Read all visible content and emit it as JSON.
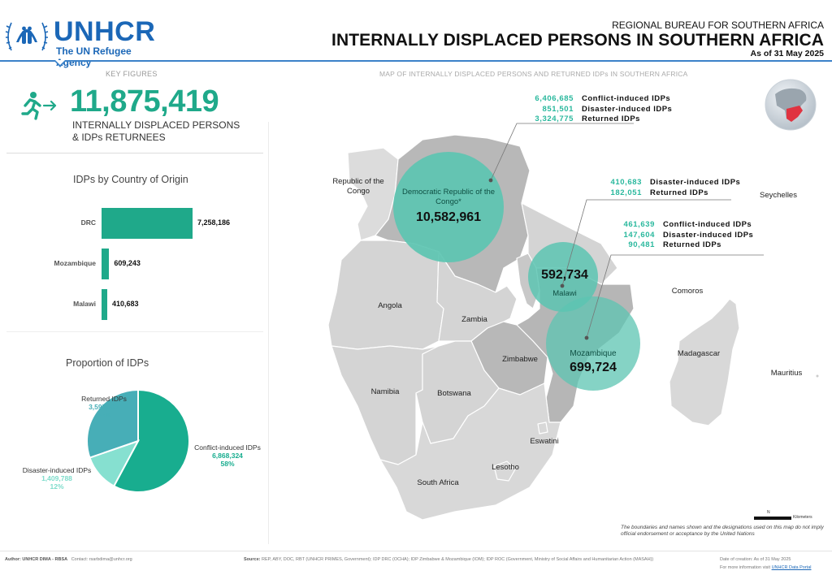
{
  "header": {
    "org_name": "UNHCR",
    "org_tagline": "The UN Refugee Agency",
    "bureau": "REGIONAL BUREAU FOR SOUTHERN AFRICA",
    "title": "INTERNALLY DISPLACED PERSONS IN SOUTHERN AFRICA",
    "as_of": "As of 31 May 2025"
  },
  "key_figures": {
    "section_label": "KEY FIGURES",
    "icon": "running-person-arrow-icon",
    "total": "11,875,419",
    "desc_line1": "INTERNALLY DISPLACED PERSONS",
    "desc_line2": "& IDPs RETURNEES"
  },
  "colors": {
    "accent": "#1fa98a",
    "brand_blue": "#1b67b7",
    "circle": "#5cc4b1",
    "conflict": "#18ad8f",
    "disaster": "#86e0d0",
    "returned": "#47aeb7",
    "globe_highlight": "#e03340"
  },
  "chart_data": [
    {
      "type": "bar",
      "orientation": "horizontal",
      "title": "IDPs by Country of Origin",
      "categories": [
        "DRC",
        "Mozambique",
        "Malawi"
      ],
      "values": [
        7258186,
        609243,
        410683
      ],
      "value_labels": [
        "7,258,186",
        "609,243",
        "410,683"
      ],
      "xlabel": "",
      "ylabel": "",
      "grid": false
    },
    {
      "type": "pie",
      "title": "Proportion of IDPs",
      "slices": [
        {
          "name": "Conflict-induced IDPs",
          "value": 6868324,
          "value_label": "6,868,324",
          "percent": "58%"
        },
        {
          "name": "Disaster-induced IDPs",
          "value": 1409788,
          "value_label": "1,409,788",
          "percent": "12%"
        },
        {
          "name": "Returned IDPs",
          "value": 3597307,
          "value_label": "3,597,307",
          "percent": "30%"
        }
      ]
    }
  ],
  "map": {
    "title": "MAP OF INTERNALLY DISPLACED PERSONS AND RETURNED IDPs IN SOUTHERN AFRICA",
    "circles": [
      {
        "name": "Democratic Republic of the Congo*",
        "total": "10,582,961"
      },
      {
        "name": "Malawi",
        "total": "592,734"
      },
      {
        "name": "Mozambique",
        "total": "699,724"
      }
    ],
    "callouts": {
      "drc": [
        {
          "value": "6,406,685",
          "label": "Conflict-induced IDPs"
        },
        {
          "value": "851,501",
          "label": "Disaster-induced IDPs"
        },
        {
          "value": "3,324,775",
          "label": "Returned IDPs"
        }
      ],
      "malawi": [
        {
          "value": "410,683",
          "label": "Disaster-induced IDPs"
        },
        {
          "value": "182,051",
          "label": "Returned IDPs"
        }
      ],
      "mozambique": [
        {
          "value": "461,639",
          "label": "Conflict-induced IDPs"
        },
        {
          "value": "147,604",
          "label": "Disaster-induced IDPs"
        },
        {
          "value": "90,481",
          "label": "Returned IDPs"
        }
      ]
    },
    "countries": {
      "roc": "Republic of the Congo",
      "angola": "Angola",
      "zambia": "Zambia",
      "zimbabwe": "Zimbabwe",
      "namibia": "Namibia",
      "botswana": "Botswana",
      "south_africa": "South Africa",
      "lesotho": "Lesotho",
      "eswatini": "Eswatini",
      "madagascar": "Madagascar",
      "comoros": "Comoros",
      "seychelles": "Seychelles",
      "mauritius": "Mauritius"
    },
    "scale_label": "Kilometers",
    "north_label": "N",
    "disclaimer": "The boundaries and names shown and the designations used on this map do not imply official endorsement or acceptance by the United Nations"
  },
  "footer": {
    "author_label": "Author:",
    "author": "UNHCR DIMA - RBSA",
    "contact_label": "Contact:",
    "contact": "rsarbdima@unhcr.org",
    "source_label": "Source:",
    "source": "REP, ABY, DOC, RBT (UNHCR PRIMES, Government); IDP DRC (OCHA); IDP Zimbabwe & Mozambique (IOM); IDP ROC (Government, Ministry of Social Affairs and Humanitarian Action (MASAH))",
    "created": "Date of creation: As of 31 May 2025",
    "more_info": "For more information visit",
    "portal_link": "UNHCR Data Portal"
  }
}
